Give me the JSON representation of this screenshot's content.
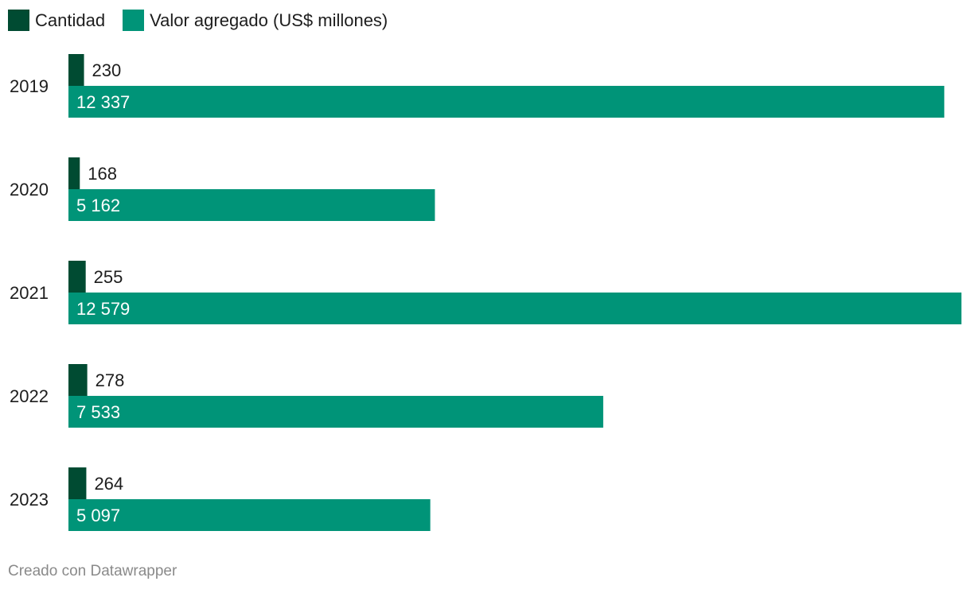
{
  "chart_data": {
    "type": "bar",
    "orientation": "horizontal",
    "categories": [
      "2019",
      "2020",
      "2021",
      "2022",
      "2023"
    ],
    "series": [
      {
        "name": "Cantidad",
        "color": "#004b32",
        "values": [
          230,
          168,
          255,
          278,
          264
        ],
        "labels": [
          "230",
          "168",
          "255",
          "278",
          "264"
        ]
      },
      {
        "name": "Valor agregado (US$ millones)",
        "color": "#009478",
        "values": [
          12337,
          5162,
          12579,
          7533,
          5097
        ],
        "labels": [
          "12 337",
          "5 162",
          "12 579",
          "7 533",
          "5 097"
        ]
      }
    ],
    "xlim": [
      0,
      12579
    ],
    "grid": false,
    "legend": "top-left"
  },
  "footer": {
    "credit": "Creado con Datawrapper"
  }
}
